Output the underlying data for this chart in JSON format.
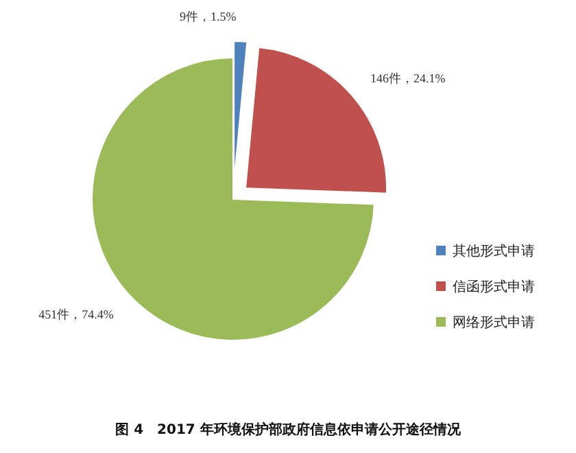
{
  "chart_data": {
    "type": "pie",
    "title": "图 4　2017 年环境保护部政府信息依申请公开途径情况",
    "categories": [
      "其他形式申请",
      "信函形式申请",
      "网络形式申请"
    ],
    "values": [
      9,
      146,
      451
    ],
    "value_labels": [
      "9件，1.5%",
      "146件，24.1%",
      "451件，74.4%"
    ],
    "colors": [
      "#4f81bd",
      "#c0504d",
      "#9bbb59"
    ],
    "legend": "right"
  }
}
